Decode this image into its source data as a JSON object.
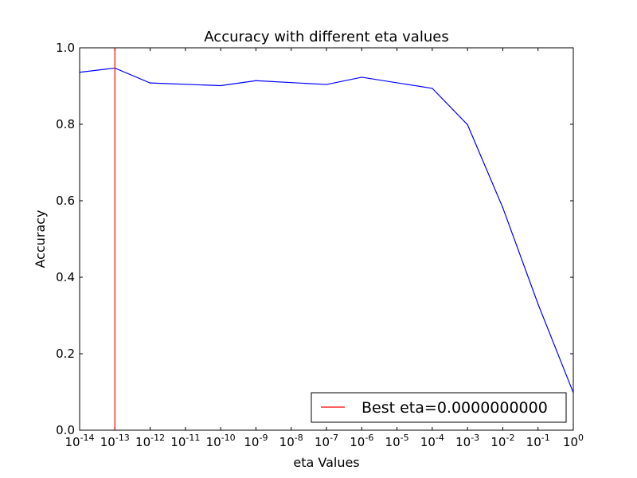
{
  "chart_data": {
    "type": "line",
    "title": "Accuracy with different eta values",
    "xlabel": "eta Values",
    "ylabel": "Accuracy",
    "xscale": "log",
    "xlim": [
      1e-14,
      1
    ],
    "ylim": [
      0.0,
      1.0
    ],
    "x_ticks": [
      {
        "base": "10",
        "exp": "-14",
        "value": 1e-14
      },
      {
        "base": "10",
        "exp": "-13",
        "value": 1e-13
      },
      {
        "base": "10",
        "exp": "-12",
        "value": 1e-12
      },
      {
        "base": "10",
        "exp": "-11",
        "value": 1e-11
      },
      {
        "base": "10",
        "exp": "-10",
        "value": 1e-10
      },
      {
        "base": "10",
        "exp": "-9",
        "value": 1e-09
      },
      {
        "base": "10",
        "exp": "-8",
        "value": 1e-08
      },
      {
        "base": "10",
        "exp": "-7",
        "value": 1e-07
      },
      {
        "base": "10",
        "exp": "-6",
        "value": 1e-06
      },
      {
        "base": "10",
        "exp": "-5",
        "value": 1e-05
      },
      {
        "base": "10",
        "exp": "-4",
        "value": 0.0001
      },
      {
        "base": "10",
        "exp": "-3",
        "value": 0.001
      },
      {
        "base": "10",
        "exp": "-2",
        "value": 0.01
      },
      {
        "base": "10",
        "exp": "-1",
        "value": 0.1
      },
      {
        "base": "10",
        "exp": "0",
        "value": 1
      }
    ],
    "y_ticks": [
      "0.0",
      "0.2",
      "0.4",
      "0.6",
      "0.8",
      "1.0"
    ],
    "series": [
      {
        "color": "#0000ff",
        "x": [
          1e-14,
          1e-13,
          1e-12,
          1e-10,
          1e-09,
          1e-07,
          1e-06,
          0.0001,
          0.001,
          0.01,
          0.1,
          1
        ],
        "y": [
          0.936,
          0.947,
          0.908,
          0.901,
          0.914,
          0.904,
          0.923,
          0.894,
          0.799,
          0.582,
          0.33,
          0.098
        ]
      }
    ],
    "vline": {
      "x": 1e-13,
      "color": "#ff0000",
      "label": "Best eta=0.0000000000"
    },
    "legend": {
      "placement": "lower-right",
      "entries": [
        "Best eta=0.0000000000"
      ]
    },
    "grid": false
  }
}
